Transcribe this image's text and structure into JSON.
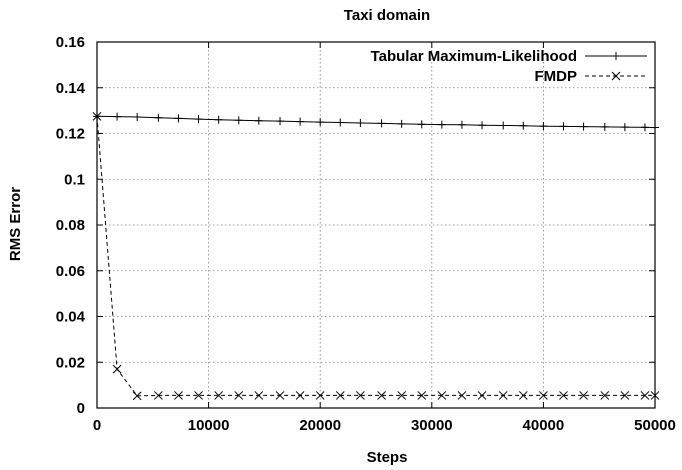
{
  "chart_data": {
    "type": "line",
    "title": "Taxi domain",
    "xlabel": "Steps",
    "ylabel": "RMS Error",
    "xlim": [
      0,
      50000
    ],
    "ylim": [
      0,
      0.16
    ],
    "x_ticks": [
      "0",
      "10000",
      "20000",
      "30000",
      "40000",
      "50000"
    ],
    "y_ticks": [
      "0",
      "0.02",
      "0.04",
      "0.06",
      "0.08",
      "0.1",
      "0.12",
      "0.14",
      "0.16"
    ],
    "grid": true,
    "legend_position": "top-right",
    "series": [
      {
        "name": "Tabular Maximum-Likelihood",
        "marker": "plus",
        "line": "solid",
        "color": "#000000",
        "x": [
          0,
          1800,
          3600,
          5500,
          7300,
          9100,
          10900,
          12700,
          14500,
          16400,
          18200,
          20000,
          21800,
          23600,
          25500,
          27300,
          29100,
          30900,
          32700,
          34500,
          36400,
          38200,
          40000,
          41800,
          43600,
          45500,
          47300,
          49100,
          50000
        ],
        "y": [
          0.1275,
          0.1274,
          0.1272,
          0.1269,
          0.1266,
          0.1263,
          0.126,
          0.1258,
          0.1256,
          0.1254,
          0.1252,
          0.125,
          0.1248,
          0.1246,
          0.1244,
          0.1242,
          0.124,
          0.1239,
          0.1238,
          0.1236,
          0.1235,
          0.1234,
          0.1232,
          0.1231,
          0.123,
          0.1229,
          0.1228,
          0.1227,
          0.1226
        ]
      },
      {
        "name": "FMDP",
        "marker": "x",
        "line": "dashed",
        "color": "#000000",
        "x": [
          0,
          1800,
          3600,
          5500,
          7300,
          9100,
          10900,
          12700,
          14500,
          16400,
          18200,
          20000,
          21800,
          23600,
          25500,
          27300,
          29100,
          30900,
          32700,
          34500,
          36400,
          38200,
          40000,
          41800,
          43600,
          45500,
          47300,
          49100,
          50000
        ],
        "y": [
          0.1275,
          0.017,
          0.0053,
          0.0055,
          0.0055,
          0.0055,
          0.0055,
          0.0055,
          0.0055,
          0.0055,
          0.0055,
          0.0055,
          0.0055,
          0.0055,
          0.0055,
          0.0055,
          0.0055,
          0.0055,
          0.0055,
          0.0055,
          0.0055,
          0.0055,
          0.0055,
          0.0055,
          0.0055,
          0.0055,
          0.0055,
          0.0055,
          0.0055
        ]
      }
    ]
  }
}
